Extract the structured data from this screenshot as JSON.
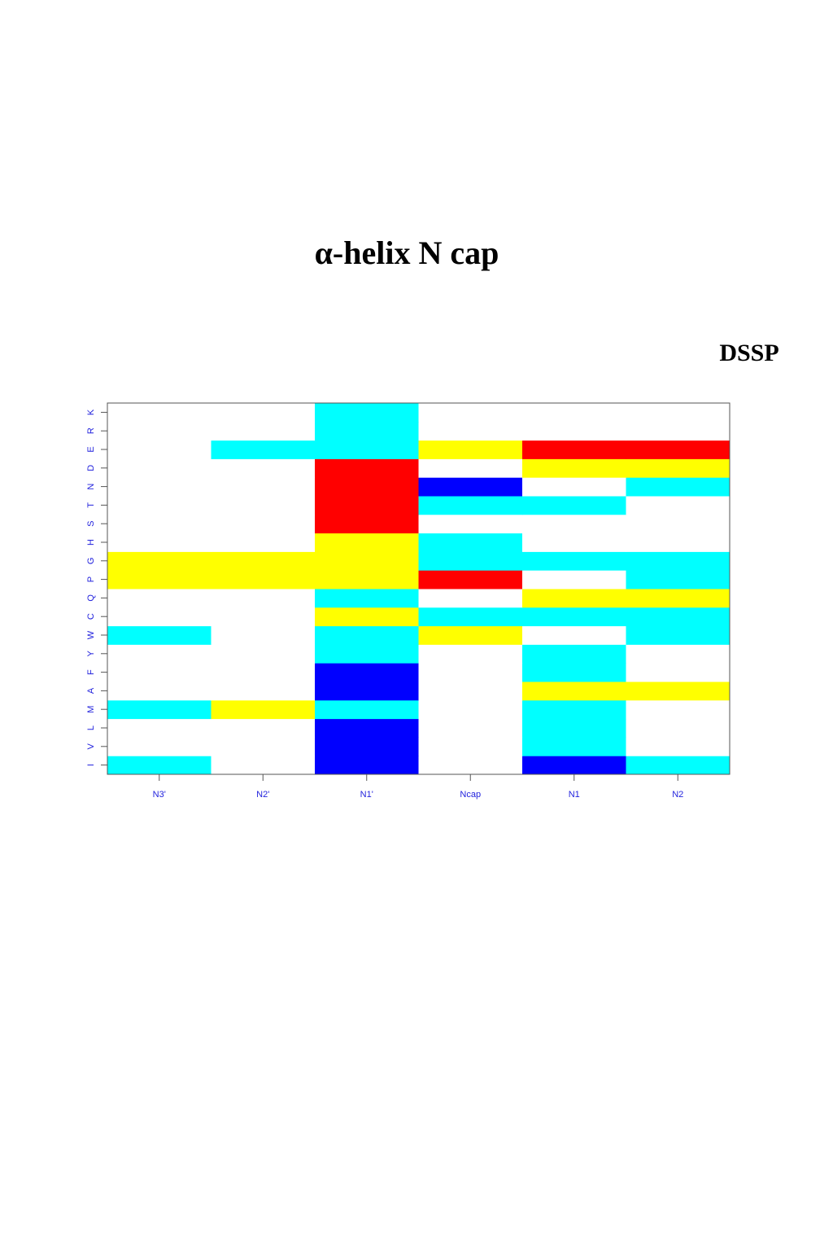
{
  "chart_data": {
    "type": "heatmap",
    "title": "α-helix N cap",
    "subtitle": "DSSP",
    "x_categories": [
      "N3'",
      "N2'",
      "N1'",
      "Ncap",
      "N1",
      "N2"
    ],
    "y_categories": [
      "I",
      "V",
      "L",
      "M",
      "A",
      "F",
      "Y",
      "W",
      "C",
      "Q",
      "P",
      "G",
      "H",
      "S",
      "T",
      "N",
      "D",
      "E",
      "R",
      "K"
    ],
    "cells": [
      [
        "#00ffff",
        "#ffffff",
        "#0000ff",
        "#ffffff",
        "#0000ff",
        "#00ffff"
      ],
      [
        "#ffffff",
        "#ffffff",
        "#0000ff",
        "#ffffff",
        "#00ffff",
        "#ffffff"
      ],
      [
        "#ffffff",
        "#ffffff",
        "#0000ff",
        "#ffffff",
        "#00ffff",
        "#ffffff"
      ],
      [
        "#00ffff",
        "#ffff00",
        "#00ffff",
        "#ffffff",
        "#00ffff",
        "#ffffff"
      ],
      [
        "#ffffff",
        "#ffffff",
        "#0000ff",
        "#ffffff",
        "#ffff00",
        "#ffff00"
      ],
      [
        "#ffffff",
        "#ffffff",
        "#0000ff",
        "#ffffff",
        "#00ffff",
        "#ffffff"
      ],
      [
        "#ffffff",
        "#ffffff",
        "#00ffff",
        "#ffffff",
        "#00ffff",
        "#ffffff"
      ],
      [
        "#00ffff",
        "#ffffff",
        "#00ffff",
        "#ffff00",
        "#ffffff",
        "#00ffff"
      ],
      [
        "#ffffff",
        "#ffffff",
        "#ffff00",
        "#00ffff",
        "#00ffff",
        "#00ffff"
      ],
      [
        "#ffffff",
        "#ffffff",
        "#00ffff",
        "#ffffff",
        "#ffff00",
        "#ffff00"
      ],
      [
        "#ffff00",
        "#ffff00",
        "#ffff00",
        "#ff0000",
        "#ffffff",
        "#00ffff"
      ],
      [
        "#ffff00",
        "#ffff00",
        "#ffff00",
        "#00ffff",
        "#00ffff",
        "#00ffff"
      ],
      [
        "#ffffff",
        "#ffffff",
        "#ffff00",
        "#00ffff",
        "#ffffff",
        "#ffffff"
      ],
      [
        "#ffffff",
        "#ffffff",
        "#ff0000",
        "#ffffff",
        "#ffffff",
        "#ffffff"
      ],
      [
        "#ffffff",
        "#ffffff",
        "#ff0000",
        "#00ffff",
        "#00ffff",
        "#ffffff"
      ],
      [
        "#ffffff",
        "#ffffff",
        "#ff0000",
        "#0000ff",
        "#ffffff",
        "#00ffff"
      ],
      [
        "#ffffff",
        "#ffffff",
        "#ff0000",
        "#ffffff",
        "#ffff00",
        "#ffff00"
      ],
      [
        "#ffffff",
        "#00ffff",
        "#00ffff",
        "#ffff00",
        "#ff0000",
        "#ff0000"
      ],
      [
        "#ffffff",
        "#ffffff",
        "#00ffff",
        "#ffffff",
        "#ffffff",
        "#ffffff"
      ],
      [
        "#ffffff",
        "#ffffff",
        "#00ffff",
        "#ffffff",
        "#ffffff",
        "#ffffff"
      ]
    ]
  }
}
